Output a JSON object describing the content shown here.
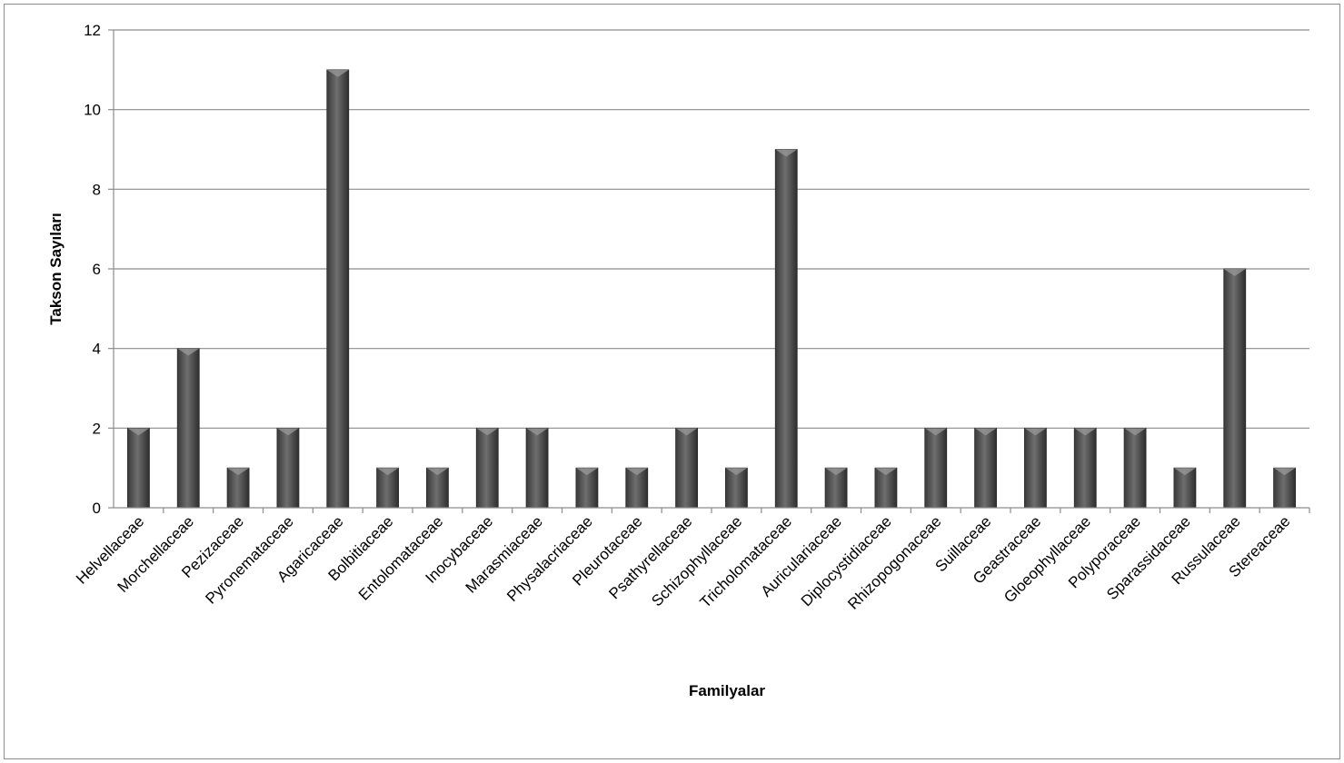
{
  "chart_data": {
    "type": "bar",
    "xlabel": "Familyalar",
    "ylabel": "Takson Sayıları",
    "ylim": [
      0,
      12
    ],
    "yticks": [
      0,
      2,
      4,
      6,
      8,
      10,
      12
    ],
    "grid": true,
    "bar_color": "#5a5a5a",
    "categories": [
      "Helvellaceae",
      "Morchellaceae",
      "Pezizaceae",
      "Pyronemataceae",
      "Agaricaceae",
      "Bolbitiaceae",
      "Entolomataceae",
      "Inocybaceae",
      "Marasmiaceae",
      "Physalacriaceae",
      "Pleurotaceae",
      "Psathyrellaceae",
      "Schizophyllaceae",
      "Tricholomataceae",
      "Auriculariaceae",
      "Diplocystidiaceae",
      "Rhizopogonaceae",
      "Suillaceae",
      "Geastraceae",
      "Gloeophyllaceae",
      "Polyporaceae",
      "Sparassidaceae",
      "Russulaceae",
      "Stereaceae"
    ],
    "values": [
      2,
      4,
      1,
      2,
      11,
      1,
      1,
      2,
      2,
      1,
      1,
      2,
      1,
      9,
      1,
      1,
      2,
      2,
      2,
      2,
      2,
      1,
      6,
      1
    ]
  }
}
